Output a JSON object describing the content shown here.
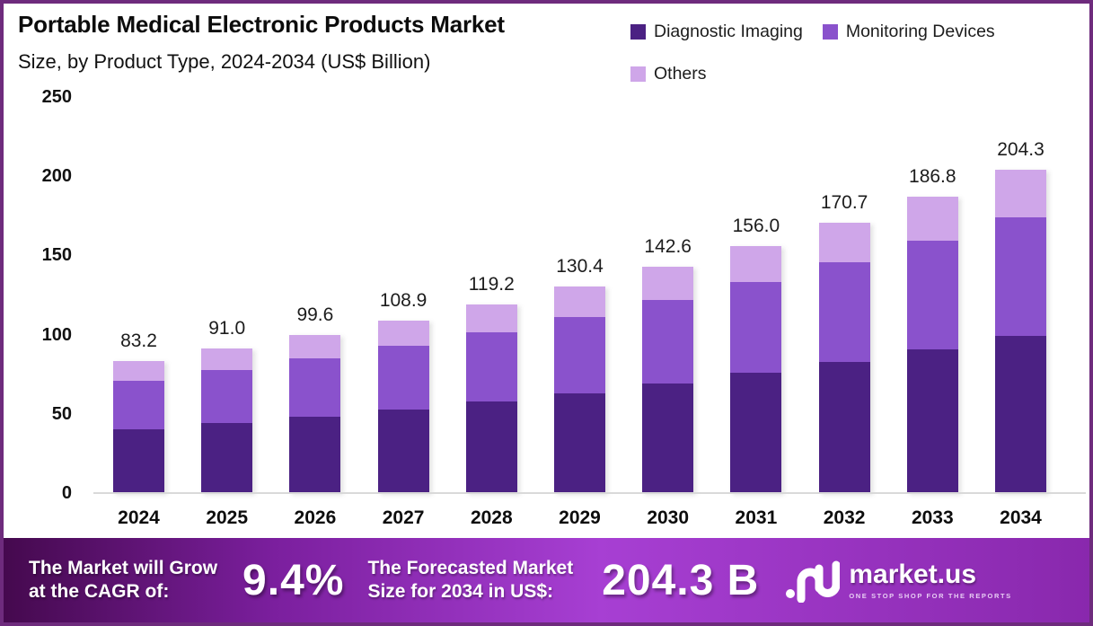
{
  "header": {
    "title": "Portable Medical Electronic Products Market",
    "subtitle": "Size, by Product Type, 2024-2034 (US$ Billion)"
  },
  "colors": {
    "border": "#6e2b7d",
    "bar_dark": "#4b2183",
    "bar_medium": "#8a52cc",
    "bar_light": "#cfa6e9",
    "footer_gradient_left": "#45094e",
    "footer_gradient_mid": "#a73fd3",
    "footer_gradient_right": "#8928ad",
    "axis_line": "#d9d9d9"
  },
  "chart_data": {
    "type": "bar",
    "stacked": true,
    "title": "Portable Medical Electronic Products Market Size, by Product Type, 2024-2034 (US$ Billion)",
    "xlabel": "",
    "ylabel": "",
    "ylim": [
      0,
      250
    ],
    "yticks": [
      250,
      200,
      150,
      100,
      50,
      0
    ],
    "grid": false,
    "legend_position": "top-right",
    "categories": [
      "2024",
      "2025",
      "2026",
      "2027",
      "2028",
      "2029",
      "2030",
      "2031",
      "2032",
      "2033",
      "2034"
    ],
    "series": [
      {
        "name": "Diagnostic Imaging",
        "color": "#4b2183",
        "values": [
          40.4,
          44.1,
          48.3,
          52.8,
          57.8,
          63.2,
          69.2,
          75.7,
          82.8,
          90.6,
          99.1
        ]
      },
      {
        "name": "Monitoring Devices",
        "color": "#8a52cc",
        "values": [
          30.6,
          33.5,
          36.7,
          40.1,
          43.9,
          48.0,
          52.5,
          57.4,
          62.8,
          68.7,
          75.2
        ]
      },
      {
        "name": "Others",
        "color": "#cfa6e9",
        "values": [
          12.2,
          13.4,
          14.6,
          16.0,
          17.5,
          19.2,
          20.9,
          22.9,
          25.1,
          27.5,
          30.0
        ]
      }
    ],
    "total_labels": [
      "83.2",
      "91.0",
      "99.6",
      "108.9",
      "119.2",
      "130.4",
      "142.6",
      "156.0",
      "170.7",
      "186.8",
      "204.3"
    ]
  },
  "footer": {
    "grow_label_line1": "The Market will Grow",
    "grow_label_line2": "at the CAGR of:",
    "cagr_value": "9.4%",
    "forecast_label_line1": "The Forecasted Market",
    "forecast_label_line2": "Size for 2034 in US$:",
    "forecast_value": "204.3 B",
    "logo_name": "market.us",
    "logo_tagline": "ONE STOP SHOP FOR THE REPORTS"
  }
}
